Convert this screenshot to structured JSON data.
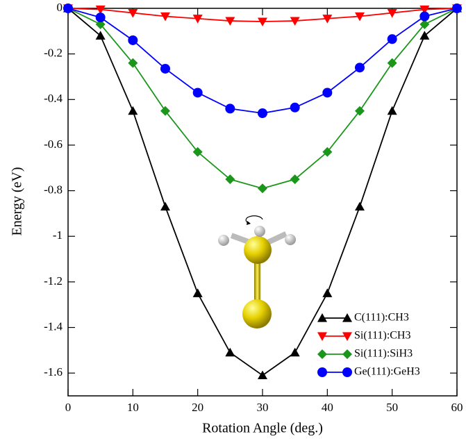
{
  "chart_data": {
    "type": "line",
    "x_label": "Rotation Angle (deg.)",
    "y_label": "Energy (eV)",
    "x": [
      0,
      5,
      10,
      15,
      20,
      25,
      30,
      35,
      40,
      45,
      50,
      55,
      60
    ],
    "series": [
      {
        "name": "C(111):CH3",
        "color": "#000000",
        "marker": "triangle-up",
        "values": [
          0,
          -0.12,
          -0.45,
          -0.87,
          -1.25,
          -1.51,
          -1.61,
          -1.51,
          -1.25,
          -0.87,
          -0.45,
          -0.12,
          0
        ]
      },
      {
        "name": "Si(111):CH3",
        "color": "#ff0000",
        "marker": "triangle-down",
        "values": [
          0,
          -0.005,
          -0.02,
          -0.035,
          -0.045,
          -0.055,
          -0.058,
          -0.055,
          -0.045,
          -0.035,
          -0.02,
          -0.005,
          0
        ]
      },
      {
        "name": "Si(111):SiH3",
        "color": "#1a961a",
        "marker": "diamond",
        "values": [
          0,
          -0.07,
          -0.24,
          -0.45,
          -0.63,
          -0.75,
          -0.79,
          -0.75,
          -0.63,
          -0.45,
          -0.24,
          -0.07,
          0
        ]
      },
      {
        "name": "Ge(111):GeH3",
        "color": "#0000ff",
        "marker": "circle",
        "values": [
          0,
          -0.04,
          -0.14,
          -0.265,
          -0.37,
          -0.44,
          -0.46,
          -0.435,
          -0.37,
          -0.26,
          -0.135,
          -0.035,
          0
        ]
      }
    ],
    "xlim": [
      0,
      60
    ],
    "xticks": [
      0,
      10,
      20,
      30,
      40,
      50,
      60
    ],
    "ylim": [
      -1.7,
      0
    ],
    "yticks": [
      0,
      -0.2,
      -0.4,
      -0.6,
      -0.8,
      -1,
      -1.2,
      -1.4,
      -1.6
    ],
    "grid": false,
    "legend": "lower-right"
  }
}
